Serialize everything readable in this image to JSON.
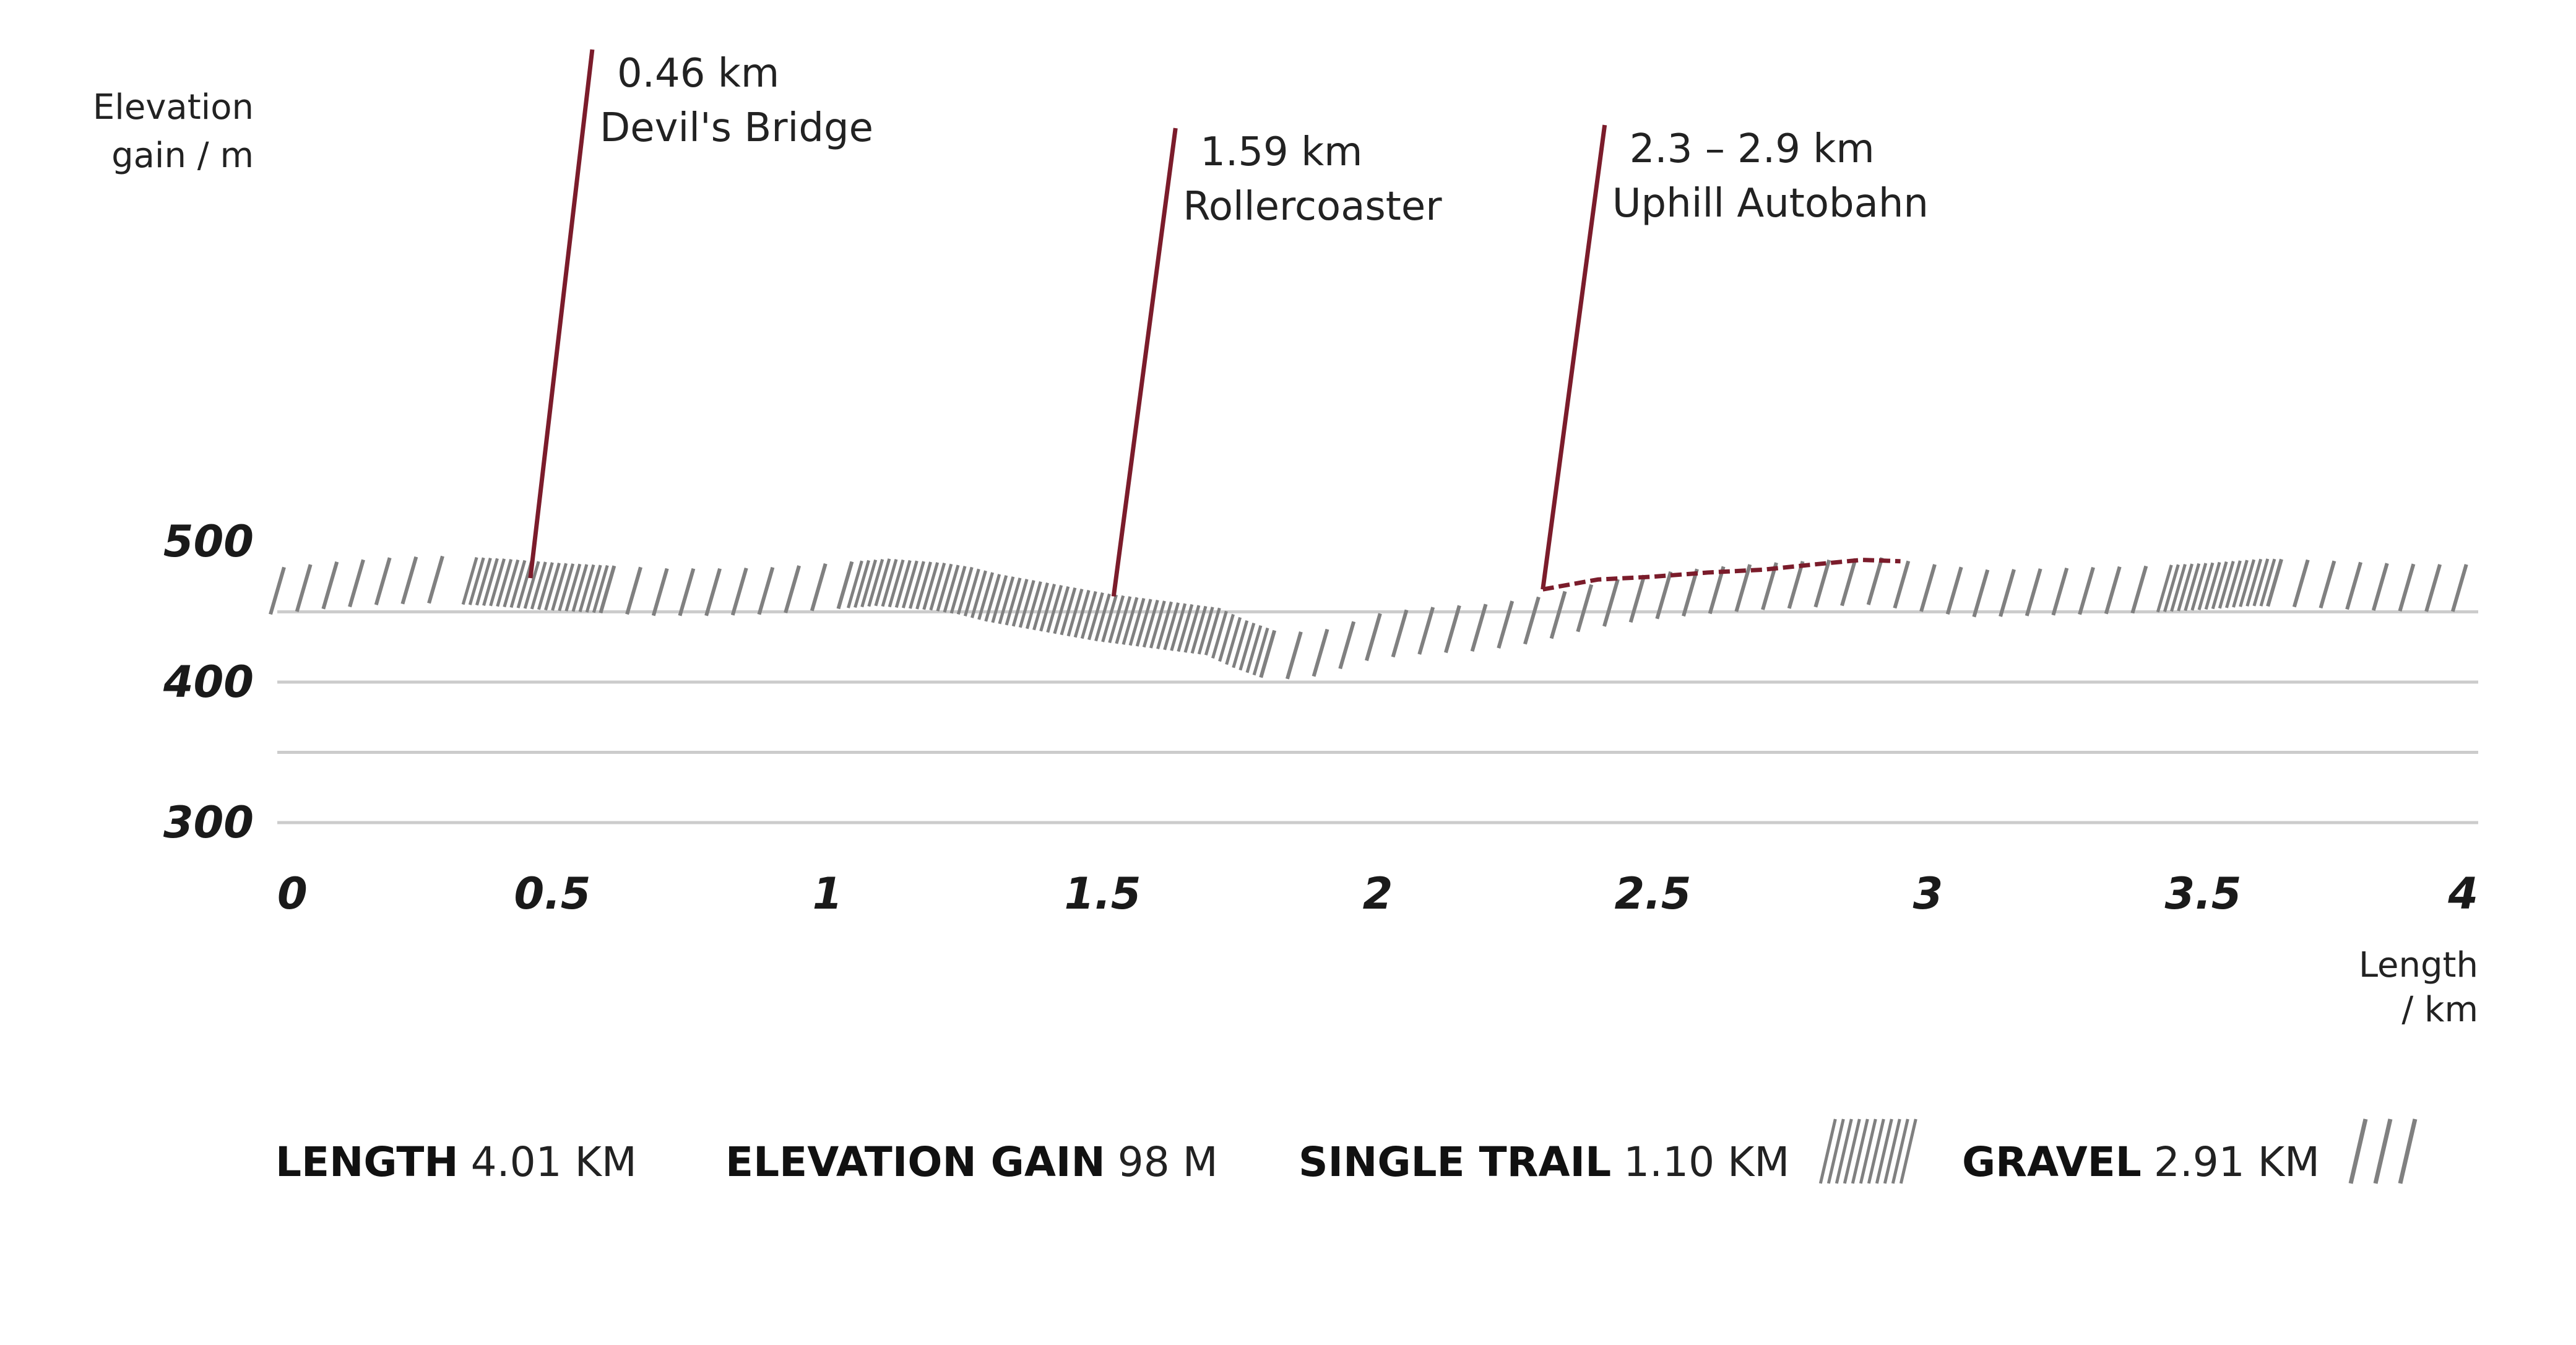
{
  "chart_data": {
    "type": "line",
    "ylabel_lines": [
      "Elevation",
      "gain / m"
    ],
    "xlabel_lines": [
      "Length",
      "/ km"
    ],
    "xlim": [
      0,
      4
    ],
    "ylim": [
      300,
      500
    ],
    "x_ticks": [
      "0",
      "0.5",
      "1",
      "1.5",
      "2",
      "2.5",
      "3",
      "3.5",
      "4"
    ],
    "y_ticks": [
      "500",
      "400",
      "300"
    ],
    "gridlines_y": [
      300,
      350,
      400,
      450
    ],
    "colors": {
      "profile": "#808080",
      "accent": "#7b1c2b",
      "grid": "#cccccc",
      "text": "#222222"
    },
    "series": [
      {
        "x": [
          0.0,
          0.1,
          0.2,
          0.3,
          0.4,
          0.5,
          0.6,
          0.7,
          0.8,
          0.9,
          1.0,
          1.1,
          1.2,
          1.25,
          1.3,
          1.4,
          1.5,
          1.6,
          1.7,
          1.75,
          1.8,
          1.85,
          1.9,
          1.95,
          2.0,
          2.1,
          2.2,
          2.3,
          2.4,
          2.5,
          2.6,
          2.7,
          2.8,
          2.9,
          3.0,
          3.1,
          3.2,
          3.3,
          3.4,
          3.5,
          3.6,
          3.7,
          3.8,
          3.9,
          4.0
        ],
        "y": [
          465,
          469,
          472,
          473,
          471,
          468,
          466,
          464,
          464,
          465,
          468,
          471,
          468,
          465,
          460,
          453,
          446,
          441,
          436,
          427,
          420,
          419,
          421,
          427,
          433,
          437,
          439,
          445,
          455,
          461,
          465,
          468,
          470,
          472,
          467,
          463,
          464,
          465,
          466,
          468,
          471,
          470,
          468,
          467,
          467
        ]
      }
    ],
    "segments": [
      {
        "type": "Gravel",
        "x": [
          0.0,
          0.35
        ]
      },
      {
        "type": "Single Trail",
        "x": [
          0.35,
          0.6
        ]
      },
      {
        "type": "Gravel",
        "x": [
          0.6,
          1.05
        ]
      },
      {
        "type": "Single Trail",
        "x": [
          1.05,
          1.8
        ]
      },
      {
        "type": "Gravel",
        "x": [
          1.8,
          3.43
        ]
      },
      {
        "type": "Single Trail",
        "x": [
          3.43,
          3.63
        ]
      },
      {
        "type": "Gravel",
        "x": [
          3.63,
          4.0
        ]
      }
    ],
    "autobahn_line": {
      "x": [
        2.3,
        2.4,
        2.5,
        2.6,
        2.7,
        2.8,
        2.88,
        2.95
      ],
      "y": [
        466,
        473,
        475,
        478,
        480,
        484,
        487,
        486
      ]
    },
    "annotations": [
      {
        "lines": [
          "0.46 km",
          "Devil's Bridge"
        ],
        "x": 0.46,
        "y": 474
      },
      {
        "lines": [
          "1.59 km",
          "Rollercoaster"
        ],
        "x": 1.52,
        "y": 461
      },
      {
        "lines": [
          "2.3 – 2.9 km",
          "Uphill Autobahn"
        ],
        "x": 2.3,
        "y": 466
      }
    ]
  },
  "stats": [
    {
      "key": "LENGTH",
      "value": "4.01 KM",
      "pattern": ""
    },
    {
      "key": "ELEVATION GAIN",
      "value": "98 M",
      "pattern": ""
    },
    {
      "key": "SINGLE TRAIL",
      "value": "1.10 KM",
      "pattern": "dense"
    },
    {
      "key": "GRAVEL",
      "value": "2.91 KM",
      "pattern": "sparse"
    }
  ]
}
